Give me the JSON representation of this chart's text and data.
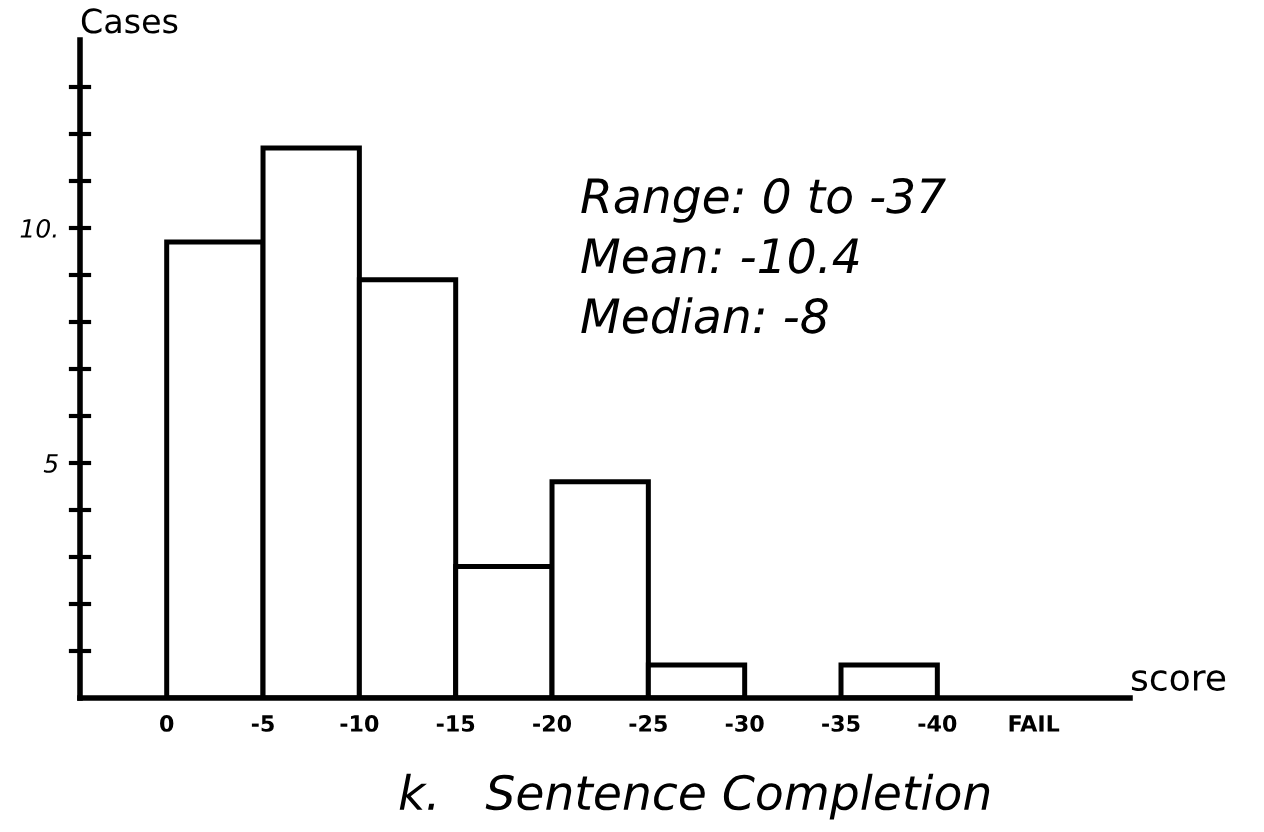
{
  "chart_data": {
    "type": "histogram",
    "title": "k.   Sentence Completion",
    "xlabel": "score",
    "ylabel": "Cases",
    "bins": [
      0,
      -5,
      -10,
      -15,
      -20,
      -25,
      -30,
      -35,
      -40
    ],
    "values": [
      9.7,
      11.7,
      8.9,
      2.8,
      4.6,
      0.7,
      0,
      0.7
    ],
    "color": "#ffffff",
    "xlim": [
      4.5,
      -50
    ],
    "xticks": [
      0,
      -5,
      -10,
      -15,
      -20,
      -25,
      -30,
      -35,
      -40,
      {
        "value": -45,
        "label": "FAIL"
      }
    ],
    "ylim": [
      0,
      14
    ],
    "yticks": [
      {
        "value": 1,
        "label": null
      },
      {
        "value": 2,
        "label": null
      },
      {
        "value": 3,
        "label": null
      },
      {
        "value": 4,
        "label": null
      },
      5,
      {
        "value": 6,
        "label": null
      },
      {
        "value": 7,
        "label": null
      },
      {
        "value": 8,
        "label": null
      },
      {
        "value": 9,
        "label": null
      },
      {
        "value": 10,
        "label": "10."
      },
      {
        "value": 11,
        "label": null
      },
      {
        "value": 12,
        "label": null
      },
      {
        "value": 13,
        "label": null
      }
    ],
    "annotations": [
      "Range: 0 to -37",
      "Mean: -10.4",
      "Median: -8"
    ],
    "grid": false,
    "legend": false
  }
}
